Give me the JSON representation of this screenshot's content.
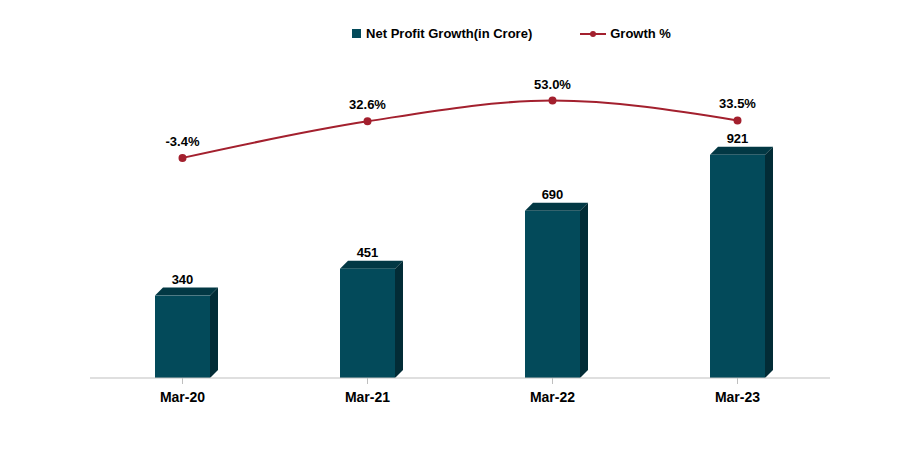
{
  "chart_data": {
    "type": "bar",
    "categories": [
      "Mar-20",
      "Mar-21",
      "Mar-22",
      "Mar-23"
    ],
    "series": [
      {
        "name": "Net Profit Growth(in Crore)",
        "type": "bar",
        "color": "#034a5a",
        "values": [
          340,
          451,
          690,
          921
        ]
      },
      {
        "name": "Growth %",
        "type": "line",
        "axis": "y2",
        "color": "#a3202e",
        "marker": "circle",
        "values": [
          -3.4,
          32.6,
          53.0,
          33.5
        ],
        "value_labels": [
          "-3.4%",
          "32.6%",
          "53.0%",
          "33.5%"
        ]
      }
    ],
    "ylim": [
      0,
      1300
    ],
    "y2lim": [
      -220,
      90
    ],
    "data_labels": true,
    "tick_labels": "x",
    "legend": "top",
    "grid": false
  }
}
